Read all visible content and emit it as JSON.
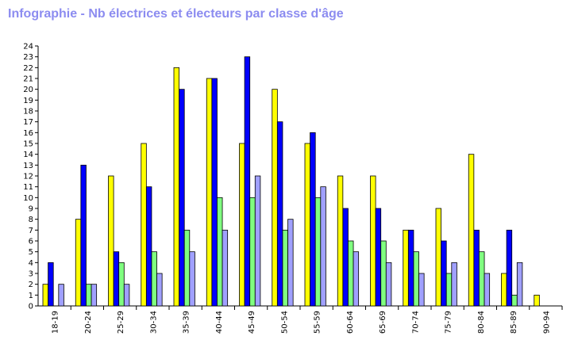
{
  "title": "Infographie - Nb électrices et électeurs par classe d'âge",
  "chart_data": {
    "type": "bar",
    "title": "Infographie - Nb électrices et électeurs par classe d'âge",
    "xlabel": "",
    "ylabel": "",
    "ylim": [
      0,
      24
    ],
    "grid": false,
    "categories": [
      "18-19",
      "20-24",
      "25-29",
      "30-34",
      "35-39",
      "40-44",
      "45-49",
      "50-54",
      "55-59",
      "60-64",
      "65-69",
      "70-74",
      "75-79",
      "80-84",
      "85-89",
      "90-94"
    ],
    "series": [
      {
        "color": "#ffff00",
        "values": [
          2,
          8,
          12,
          15,
          22,
          21,
          15,
          20,
          15,
          12,
          12,
          7,
          9,
          14,
          3,
          1
        ]
      },
      {
        "color": "#0000ff",
        "values": [
          4,
          13,
          5,
          11,
          20,
          21,
          23,
          17,
          16,
          9,
          9,
          7,
          6,
          7,
          7,
          0
        ]
      },
      {
        "color": "#80ff80",
        "values": [
          0,
          2,
          4,
          5,
          7,
          10,
          10,
          7,
          10,
          6,
          6,
          5,
          3,
          5,
          1,
          0
        ]
      },
      {
        "color": "#a0a0ff",
        "values": [
          2,
          2,
          2,
          3,
          5,
          7,
          12,
          8,
          11,
          5,
          4,
          3,
          4,
          3,
          4,
          0
        ]
      }
    ],
    "y_ticks": [
      "0",
      "1",
      "2",
      "3",
      "4",
      "5",
      "6",
      "7",
      "8",
      "9",
      "10",
      "11",
      "12",
      "13",
      "14",
      "15",
      "16",
      "17",
      "18",
      "19",
      "20",
      "21",
      "22",
      "23",
      "24"
    ]
  }
}
